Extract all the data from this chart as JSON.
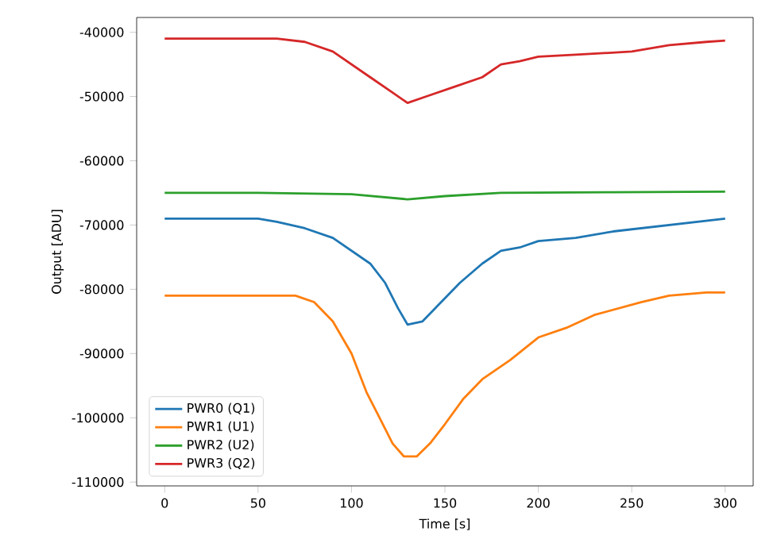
{
  "chart_data": {
    "type": "line",
    "xlabel": "Time [s]",
    "ylabel": "Output [ADU]",
    "xlim": [
      -15,
      315
    ],
    "ylim": [
      -110600,
      -37700
    ],
    "xticks": [
      0,
      50,
      100,
      150,
      200,
      250,
      300
    ],
    "yticks": [
      -110000,
      -100000,
      -90000,
      -80000,
      -70000,
      -60000,
      -50000,
      -40000
    ],
    "legend": "bottom left",
    "grid": false,
    "line_style": "solid",
    "marker": "none",
    "series": [
      {
        "name": "PWR0 (Q1)",
        "color": "#1f77b4",
        "x": [
          0,
          25,
          50,
          60,
          75,
          90,
          100,
          110,
          118,
          125,
          130,
          138,
          148,
          158,
          170,
          180,
          190,
          200,
          220,
          240,
          255,
          270,
          285,
          300
        ],
        "values": [
          -69000,
          -69000,
          -69000,
          -69500,
          -70500,
          -72000,
          -74000,
          -76000,
          -79000,
          -83000,
          -85500,
          -85000,
          -82000,
          -79000,
          -76000,
          -74000,
          -73500,
          -72500,
          -72000,
          -71000,
          -70500,
          -70000,
          -69500,
          -69000
        ]
      },
      {
        "name": "PWR1 (U1)",
        "color": "#ff7f0e",
        "x": [
          0,
          35,
          70,
          80,
          90,
          100,
          108,
          115,
          122,
          128,
          135,
          142,
          150,
          160,
          170,
          185,
          200,
          215,
          230,
          255,
          270,
          290,
          300
        ],
        "values": [
          -81000,
          -81000,
          -81000,
          -82000,
          -85000,
          -90000,
          -96000,
          -100000,
          -104000,
          -106000,
          -106000,
          -104000,
          -101000,
          -97000,
          -94000,
          -91000,
          -87500,
          -86000,
          -84000,
          -82000,
          -81000,
          -80500,
          -80500
        ]
      },
      {
        "name": "PWR2 (U2)",
        "color": "#2ca02c",
        "x": [
          0,
          50,
          100,
          130,
          150,
          180,
          240,
          300
        ],
        "values": [
          -65000,
          -65000,
          -65200,
          -66000,
          -65500,
          -65000,
          -64900,
          -64800
        ]
      },
      {
        "name": "PWR3 (Q2)",
        "color": "#d62728",
        "x": [
          0,
          30,
          60,
          75,
          90,
          100,
          110,
          120,
          130,
          140,
          155,
          170,
          180,
          190,
          200,
          220,
          250,
          270,
          290,
          300
        ],
        "values": [
          -41000,
          -41000,
          -41000,
          -41500,
          -43000,
          -45000,
          -47000,
          -49000,
          -51000,
          -50000,
          -48500,
          -47000,
          -45000,
          -44500,
          -43800,
          -43500,
          -43000,
          -42000,
          -41500,
          -41300
        ]
      }
    ]
  }
}
